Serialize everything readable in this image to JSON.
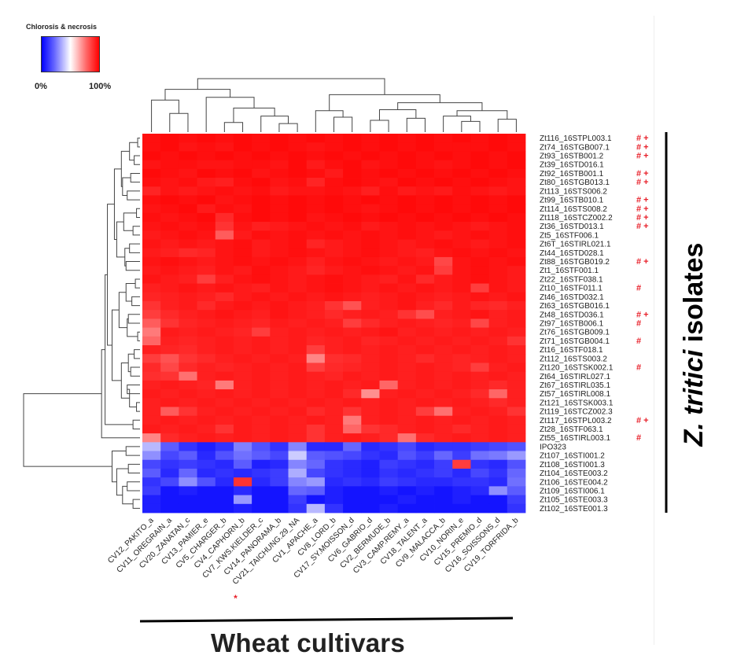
{
  "legend": {
    "title": "Chlorosis & necrosis",
    "min_label": "0%",
    "max_label": "100%",
    "colors": [
      "#0000ff",
      "#ffffff",
      "#ff0000"
    ]
  },
  "title_right": {
    "italic_part": "Z. tritici",
    "plain_part": " isolates"
  },
  "title_bottom": "Wheat cultivars",
  "chart_data": {
    "type": "heatmap",
    "title": "",
    "value_label": "Chlorosis & necrosis",
    "value_range": [
      0,
      100
    ],
    "columns": [
      "CV12_PAKITO_a",
      "CV11_OREGRAIN_a",
      "CV20_ZANATAN_c",
      "CV13_PAMIER_e",
      "CV5_CHARGER_b",
      "CV4_CAPHORN_b",
      "CV7_KWS.KIELDER_c",
      "CV14_PANORAMA_b",
      "CV21_TAICHUNG.29_NA",
      "CV1_APACHE_a",
      "CV8_LORD_b",
      "CV17_SY.MOISSON_d",
      "CV6_GABRIO_d",
      "CV2_BERMUDE_b",
      "CV3_CAMP.REMY_a",
      "CV18_TALENT_a",
      "CV9_MALACCA_b",
      "CV10_NORIN_e",
      "CV15_PREMIO_d",
      "CV16_SOISSONS_d",
      "CV19_TORFRIDA_b"
    ],
    "column_marks": [
      "",
      "",
      "",
      "",
      "",
      "",
      "",
      "",
      "*",
      "",
      "",
      "",
      "",
      "",
      "",
      "",
      "",
      "",
      "",
      "",
      ""
    ],
    "rows": [
      "Zt116_16STPL003.1",
      "Zt74_16STGB007.1",
      "Zt93_16STB001.2",
      "Zt39_16STD016.1",
      "Zt92_16STB001.1",
      "Zt80_16STGB013.1",
      "Zt113_16STS006.2",
      "Zt99_16STB010.1",
      "Zt114_16STS008.2",
      "Zt118_16STCZ002.2",
      "Zt36_16STD013.1",
      "Zt5_16STF006.1",
      "Zt6T_16STIRL021.1",
      "Zt44_16STD028.1",
      "Zt88_16STGB019.2",
      "Zt1_16STF001.1",
      "Zt22_16STF038.1",
      "Zt10_16STF011.1",
      "Zt46_16STD032.1",
      "Zt63_16STGB016.1",
      "Zt48_16STD036.1",
      "Zt97_16STB006.1",
      "Zt76_16STGB009.1",
      "Zt71_16STGB004.1",
      "Zt16_16STF018.1",
      "Zt112_16STS003.2",
      "Zt120_16STSK002.1",
      "Zt64_16STIRL027.1",
      "Zt67_16STIRL035.1",
      "Zt57_16STIRL008.1",
      "Zt121_16STSK003.1",
      "Zt119_16STCZ002.3",
      "Zt117_16STPL003.2",
      "Zt28_16STF063.1",
      "Zt55_16STIRL003.1",
      "IPO323",
      "Zt107_16STI001.2",
      "Zt108_16STI001.3",
      "Zt104_16STE003.2",
      "Zt106_16STE004.2",
      "Zt109_16STI006.1",
      "Zt105_16STE003.3",
      "Zt102_16STE001.3"
    ],
    "row_marks": [
      "# +",
      "# +",
      "# +",
      "",
      "# +",
      "# +",
      "",
      "# +",
      "# +",
      "# +",
      "# +",
      "",
      "",
      "",
      "# +",
      "",
      "",
      "#",
      "",
      "",
      "# +",
      "#",
      "",
      "#",
      "",
      "",
      "#",
      "",
      "",
      "",
      "",
      "",
      "# +",
      "",
      "#",
      "",
      "",
      "",
      "",
      "",
      "",
      "",
      ""
    ],
    "values": [
      [
        97,
        98,
        97,
        98,
        97,
        98,
        97,
        98,
        97,
        98,
        97,
        98,
        97,
        98,
        97,
        98,
        97,
        98,
        97,
        98,
        97
      ],
      [
        97,
        98,
        96,
        97,
        96,
        98,
        97,
        98,
        97,
        96,
        97,
        98,
        97,
        98,
        97,
        98,
        97,
        97,
        97,
        98,
        97
      ],
      [
        98,
        97,
        98,
        97,
        98,
        97,
        98,
        97,
        98,
        97,
        98,
        97,
        98,
        97,
        98,
        97,
        98,
        97,
        98,
        97,
        98
      ],
      [
        96,
        97,
        97,
        96,
        96,
        97,
        97,
        96,
        98,
        95,
        97,
        98,
        96,
        97,
        98,
        97,
        96,
        97,
        98,
        97,
        98
      ],
      [
        98,
        97,
        96,
        98,
        97,
        98,
        96,
        97,
        98,
        97,
        95,
        98,
        97,
        98,
        97,
        98,
        97,
        98,
        97,
        98,
        97
      ],
      [
        97,
        96,
        97,
        95,
        94,
        97,
        98,
        96,
        97,
        93,
        97,
        98,
        97,
        96,
        98,
        97,
        98,
        97,
        98,
        97,
        96
      ],
      [
        93,
        96,
        95,
        96,
        97,
        96,
        97,
        95,
        96,
        96,
        97,
        96,
        94,
        97,
        95,
        96,
        95,
        97,
        96,
        95,
        96
      ],
      [
        97,
        98,
        97,
        98,
        96,
        97,
        98,
        97,
        98,
        97,
        98,
        97,
        98,
        97,
        98,
        97,
        98,
        97,
        98,
        97,
        98
      ],
      [
        96,
        97,
        98,
        95,
        97,
        96,
        98,
        97,
        98,
        97,
        98,
        97,
        96,
        97,
        98,
        97,
        98,
        97,
        98,
        97,
        98
      ],
      [
        97,
        96,
        97,
        98,
        92,
        97,
        98,
        97,
        98,
        96,
        97,
        98,
        97,
        98,
        97,
        98,
        97,
        98,
        97,
        98,
        97
      ],
      [
        96,
        97,
        96,
        97,
        90,
        96,
        94,
        95,
        96,
        97,
        96,
        97,
        95,
        96,
        97,
        96,
        97,
        96,
        95,
        96,
        97
      ],
      [
        95,
        96,
        97,
        96,
        82,
        95,
        97,
        96,
        97,
        96,
        97,
        96,
        97,
        96,
        97,
        96,
        95,
        96,
        97,
        96,
        97
      ],
      [
        96,
        95,
        96,
        95,
        96,
        97,
        95,
        96,
        97,
        93,
        95,
        96,
        97,
        96,
        95,
        96,
        97,
        96,
        95,
        96,
        97
      ],
      [
        95,
        94,
        92,
        93,
        96,
        97,
        95,
        96,
        97,
        96,
        95,
        96,
        97,
        96,
        95,
        94,
        96,
        97,
        96,
        97,
        96
      ],
      [
        96,
        97,
        96,
        95,
        96,
        97,
        96,
        97,
        96,
        94,
        96,
        97,
        96,
        95,
        96,
        95,
        86,
        96,
        97,
        96,
        97
      ],
      [
        95,
        96,
        95,
        94,
        96,
        95,
        97,
        96,
        95,
        93,
        95,
        96,
        97,
        96,
        95,
        96,
        88,
        96,
        97,
        96,
        95
      ],
      [
        96,
        95,
        94,
        88,
        94,
        96,
        97,
        96,
        95,
        96,
        97,
        96,
        95,
        94,
        96,
        92,
        95,
        96,
        97,
        96,
        95
      ],
      [
        94,
        95,
        96,
        95,
        96,
        95,
        94,
        96,
        95,
        96,
        97,
        96,
        95,
        96,
        95,
        96,
        95,
        96,
        88,
        96,
        95
      ],
      [
        93,
        94,
        95,
        94,
        92,
        95,
        96,
        95,
        96,
        95,
        96,
        95,
        94,
        95,
        96,
        95,
        94,
        95,
        96,
        95,
        96
      ],
      [
        90,
        94,
        95,
        92,
        95,
        96,
        95,
        96,
        95,
        94,
        90,
        84,
        94,
        95,
        96,
        94,
        92,
        95,
        93,
        92,
        94
      ],
      [
        88,
        92,
        94,
        95,
        96,
        95,
        94,
        96,
        95,
        94,
        92,
        94,
        95,
        94,
        90,
        85,
        94,
        95,
        96,
        94,
        95
      ],
      [
        82,
        90,
        93,
        94,
        95,
        94,
        93,
        95,
        94,
        95,
        94,
        88,
        92,
        94,
        95,
        94,
        93,
        94,
        86,
        94,
        95
      ],
      [
        76,
        95,
        94,
        95,
        94,
        93,
        88,
        94,
        95,
        94,
        95,
        94,
        95,
        96,
        94,
        95,
        94,
        95,
        94,
        95,
        94
      ],
      [
        80,
        94,
        93,
        94,
        95,
        94,
        95,
        94,
        95,
        93,
        94,
        95,
        93,
        94,
        95,
        94,
        95,
        94,
        95,
        94,
        90
      ],
      [
        94,
        93,
        92,
        94,
        95,
        94,
        95,
        94,
        95,
        88,
        94,
        95,
        94,
        95,
        94,
        95,
        94,
        95,
        94,
        95,
        94
      ],
      [
        88,
        84,
        90,
        92,
        94,
        95,
        94,
        95,
        94,
        74,
        91,
        92,
        94,
        95,
        94,
        92,
        94,
        93,
        94,
        95,
        94
      ],
      [
        92,
        86,
        92,
        94,
        93,
        94,
        95,
        94,
        95,
        88,
        92,
        93,
        94,
        95,
        94,
        95,
        94,
        93,
        88,
        94,
        95
      ],
      [
        91,
        90,
        78,
        94,
        95,
        94,
        95,
        94,
        95,
        94,
        93,
        95,
        94,
        95,
        94,
        95,
        94,
        95,
        94,
        95,
        94
      ],
      [
        94,
        95,
        94,
        93,
        76,
        94,
        95,
        94,
        95,
        94,
        95,
        94,
        95,
        80,
        94,
        95,
        94,
        95,
        94,
        92,
        94
      ],
      [
        95,
        94,
        95,
        94,
        95,
        94,
        95,
        94,
        95,
        94,
        95,
        92,
        72,
        94,
        95,
        94,
        95,
        94,
        92,
        80,
        94
      ],
      [
        94,
        95,
        94,
        95,
        94,
        95,
        94,
        95,
        94,
        95,
        94,
        95,
        94,
        95,
        94,
        95,
        94,
        95,
        94,
        92,
        94
      ],
      [
        94,
        82,
        90,
        94,
        95,
        94,
        95,
        94,
        95,
        92,
        94,
        90,
        94,
        95,
        94,
        88,
        78,
        94,
        95,
        94,
        90
      ],
      [
        94,
        95,
        94,
        95,
        94,
        95,
        94,
        95,
        94,
        95,
        94,
        76,
        94,
        95,
        94,
        95,
        94,
        95,
        94,
        95,
        94
      ],
      [
        95,
        94,
        95,
        94,
        90,
        95,
        94,
        95,
        94,
        90,
        94,
        80,
        90,
        92,
        94,
        95,
        94,
        92,
        94,
        95,
        94
      ],
      [
        74,
        92,
        94,
        95,
        94,
        95,
        94,
        95,
        94,
        90,
        94,
        95,
        94,
        92,
        78,
        92,
        94,
        95,
        94,
        95,
        94
      ],
      [
        36,
        18,
        10,
        6,
        10,
        25,
        16,
        10,
        26,
        8,
        8,
        20,
        8,
        10,
        14,
        8,
        10,
        10,
        12,
        14,
        16
      ],
      [
        28,
        14,
        18,
        8,
        16,
        22,
        18,
        14,
        40,
        18,
        16,
        14,
        10,
        8,
        16,
        12,
        20,
        12,
        22,
        24,
        30
      ],
      [
        14,
        10,
        12,
        10,
        8,
        18,
        6,
        8,
        26,
        20,
        10,
        8,
        6,
        12,
        10,
        8,
        12,
        88,
        10,
        8,
        16
      ],
      [
        18,
        8,
        20,
        8,
        10,
        8,
        10,
        12,
        34,
        14,
        10,
        8,
        6,
        10,
        8,
        10,
        12,
        8,
        14,
        10,
        20
      ],
      [
        10,
        14,
        28,
        16,
        8,
        90,
        8,
        12,
        26,
        30,
        8,
        10,
        8,
        12,
        10,
        8,
        8,
        10,
        10,
        8,
        22
      ],
      [
        12,
        4,
        6,
        4,
        4,
        8,
        4,
        4,
        20,
        18,
        6,
        4,
        4,
        6,
        4,
        6,
        4,
        6,
        8,
        28,
        18
      ],
      [
        6,
        4,
        4,
        4,
        4,
        30,
        4,
        4,
        12,
        4,
        6,
        4,
        4,
        4,
        6,
        4,
        4,
        6,
        4,
        4,
        12
      ],
      [
        6,
        4,
        4,
        4,
        4,
        6,
        4,
        4,
        10,
        36,
        10,
        4,
        4,
        6,
        4,
        4,
        4,
        4,
        4,
        4,
        10
      ]
    ]
  }
}
